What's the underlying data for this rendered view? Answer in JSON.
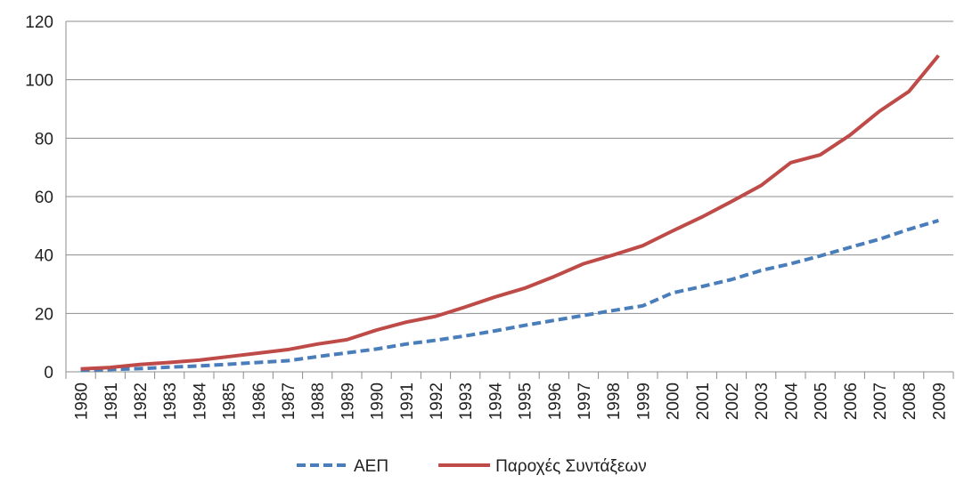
{
  "chart_data": {
    "type": "line",
    "categories": [
      "1980",
      "1981",
      "1982",
      "1983",
      "1984",
      "1985",
      "1986",
      "1987",
      "1988",
      "1989",
      "1990",
      "1991",
      "1992",
      "1993",
      "1994",
      "1995",
      "1996",
      "1997",
      "1998",
      "1999",
      "2000",
      "2001",
      "2002",
      "2003",
      "2004",
      "2005",
      "2006",
      "2007",
      "2008",
      "2009"
    ],
    "series": [
      {
        "name": "ΑΕΠ",
        "color": "#4a7ebb",
        "dashed": true,
        "values": [
          0.5,
          0.8,
          1.1,
          1.6,
          2,
          2.6,
          3.2,
          3.8,
          5.2,
          6.5,
          7.8,
          9.5,
          10.8,
          12.3,
          14,
          15.9,
          17.6,
          19.3,
          21,
          22.6,
          27,
          29.2,
          31.6,
          34.7,
          37,
          39.7,
          42.6,
          45.4,
          48.8,
          51.8
        ]
      },
      {
        "name": "Παροχές Συντάξεων",
        "color": "#be4b48",
        "dashed": false,
        "values": [
          1,
          1.5,
          2.5,
          3.2,
          4,
          5.2,
          6.4,
          7.6,
          9.5,
          11,
          14.3,
          17,
          19,
          22.2,
          25.6,
          28.6,
          32.6,
          37,
          40,
          43.2,
          48.2,
          53,
          58.3,
          63.8,
          71.6,
          74.3,
          81,
          89.2,
          96,
          108.3
        ]
      }
    ],
    "ylim": [
      0,
      120
    ],
    "yticks": [
      0,
      20,
      40,
      60,
      80,
      100,
      120
    ],
    "grid": true,
    "legend": "bottom"
  }
}
